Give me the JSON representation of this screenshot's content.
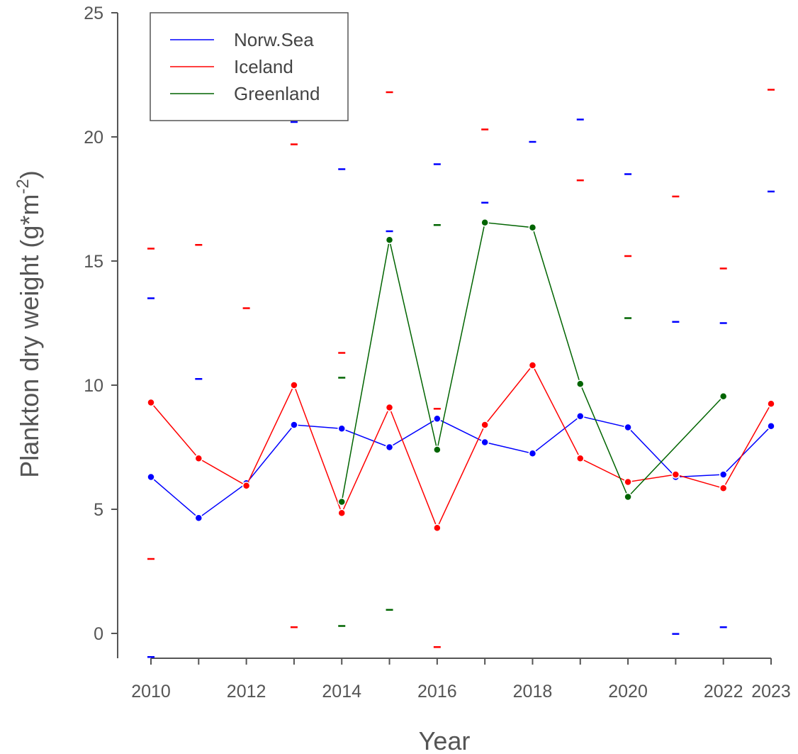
{
  "chart_data": {
    "type": "line",
    "xlabel": "Year",
    "ylabel": {
      "base": "Plankton dry weight (g*m",
      "exp": "-2",
      "close": ")"
    },
    "xlim": [
      2010,
      2023
    ],
    "ylim": [
      -1,
      25
    ],
    "x_ticks": [
      2010,
      2011,
      2012,
      2013,
      2014,
      2015,
      2016,
      2017,
      2018,
      2019,
      2020,
      2021,
      2022,
      2023
    ],
    "x_tick_labels": [
      2010,
      2012,
      2014,
      2016,
      2018,
      2020,
      2022,
      2023
    ],
    "y_ticks": [
      0,
      5,
      10,
      15,
      20,
      25
    ],
    "grid": false,
    "legend": "top-left",
    "series": [
      {
        "name": "Norw.Sea",
        "color": "#0000ff",
        "x": [
          2010,
          2011,
          2012,
          2013,
          2014,
          2015,
          2016,
          2017,
          2018,
          2019,
          2020,
          2021,
          2022,
          2023
        ],
        "y": [
          6.3,
          4.65,
          6.05,
          8.4,
          8.25,
          7.5,
          8.65,
          7.7,
          7.25,
          8.75,
          8.3,
          6.3,
          6.4,
          8.35
        ],
        "upper": [
          13.5,
          10.25,
          null,
          20.6,
          18.7,
          16.2,
          18.9,
          17.35,
          19.8,
          20.7,
          18.5,
          12.55,
          12.5,
          17.8
        ],
        "lower": [
          -0.95,
          null,
          null,
          null,
          null,
          null,
          null,
          null,
          null,
          null,
          null,
          -0.02,
          0.25,
          null
        ]
      },
      {
        "name": "Iceland",
        "color": "#ff0000",
        "x": [
          2010,
          2011,
          2012,
          2013,
          2014,
          2015,
          2016,
          2017,
          2018,
          2019,
          2020,
          2021,
          2022,
          2023
        ],
        "y": [
          9.3,
          7.05,
          5.95,
          10.0,
          4.85,
          9.1,
          4.25,
          8.4,
          10.8,
          7.05,
          6.1,
          6.4,
          5.85,
          9.25
        ],
        "upper": [
          15.5,
          15.65,
          13.1,
          19.7,
          11.3,
          21.8,
          9.05,
          20.3,
          null,
          18.25,
          15.2,
          17.6,
          14.7,
          21.9
        ],
        "lower": [
          3.0,
          null,
          null,
          0.25,
          null,
          null,
          -0.55,
          null,
          null,
          null,
          null,
          null,
          null,
          null
        ]
      },
      {
        "name": "Greenland",
        "color": "#006400",
        "x": [
          2014,
          2015,
          2016,
          2017,
          2018,
          2019,
          2020,
          2022
        ],
        "y": [
          5.3,
          15.85,
          7.4,
          16.55,
          16.35,
          10.05,
          5.5,
          9.55
        ],
        "upper": [
          10.3,
          null,
          16.45,
          null,
          null,
          null,
          12.7,
          null
        ],
        "lower": [
          0.3,
          0.95,
          null,
          null,
          null,
          null,
          null,
          null
        ]
      }
    ]
  }
}
